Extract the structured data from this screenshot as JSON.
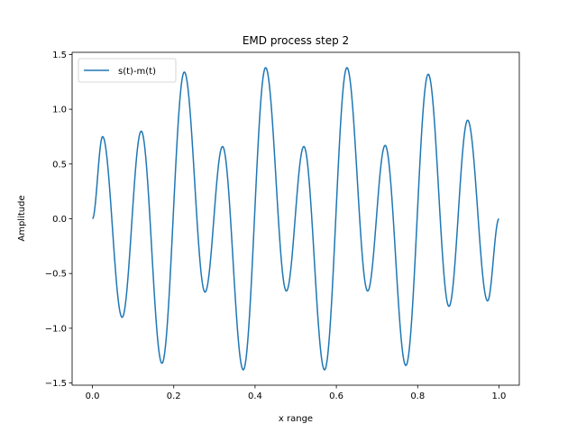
{
  "chart_data": {
    "type": "line",
    "title": "EMD process step 2",
    "xlabel": "x range",
    "ylabel": "Amplitude",
    "xlim": [
      -0.05,
      1.05
    ],
    "ylim": [
      -1.52,
      1.52
    ],
    "xticks": [
      0.0,
      0.2,
      0.4,
      0.6,
      0.8,
      1.0
    ],
    "xtick_labels": [
      "0.0",
      "0.2",
      "0.4",
      "0.6",
      "0.8",
      "1.0"
    ],
    "yticks": [
      -1.5,
      -1.0,
      -0.5,
      0.0,
      0.5,
      1.0,
      1.5
    ],
    "ytick_labels": [
      "−1.5",
      "−1.0",
      "−0.5",
      "0.0",
      "0.5",
      "1.0",
      "1.5"
    ],
    "legend_position": "upper-left",
    "grid": false,
    "series": [
      {
        "name": "s(t)-m(t)",
        "color": "#1f77b4",
        "x": [
          0.0,
          0.025,
          0.073,
          0.12,
          0.171,
          0.226,
          0.277,
          0.32,
          0.371,
          0.426,
          0.477,
          0.52,
          0.571,
          0.626,
          0.677,
          0.72,
          0.771,
          0.826,
          0.877,
          0.923,
          0.972,
          1.0
        ],
        "y": [
          0.0,
          0.75,
          -0.9,
          0.8,
          -1.32,
          1.34,
          -0.67,
          0.66,
          -1.38,
          1.38,
          -0.66,
          0.66,
          -1.38,
          1.38,
          -0.66,
          0.67,
          -1.34,
          1.32,
          -0.8,
          0.9,
          -0.75,
          0.0
        ]
      }
    ]
  }
}
